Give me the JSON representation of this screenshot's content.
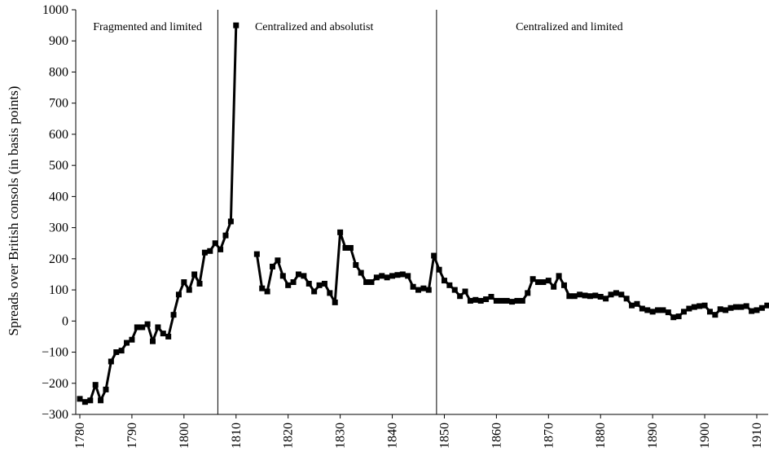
{
  "chart_data": {
    "type": "line",
    "title": "",
    "xlabel": "",
    "ylabel": "Spreads over British consols (in basis points)",
    "xlim": [
      1780,
      1913
    ],
    "ylim": [
      -300,
      1000
    ],
    "y_ticks": [
      -300,
      -200,
      -100,
      0,
      100,
      200,
      300,
      400,
      500,
      600,
      700,
      800,
      900,
      1000
    ],
    "x_ticks": [
      1780,
      1790,
      1800,
      1810,
      1820,
      1830,
      1840,
      1850,
      1860,
      1870,
      1880,
      1890,
      1900,
      1910
    ],
    "grid": false,
    "marker": "square",
    "regime_lines": [
      1806.5,
      1848.5
    ],
    "regime_labels": [
      {
        "text": "Fragmented and limited",
        "x": 1793
      },
      {
        "text": "Centralized and absolutist",
        "x": 1825
      },
      {
        "text": "Centralized and limited",
        "x": 1874
      }
    ],
    "series": [
      {
        "segments": [
          [
            [
              1780,
              -250
            ],
            [
              1781,
              -260
            ],
            [
              1782,
              -255
            ],
            [
              1783,
              -205
            ],
            [
              1784,
              -255
            ],
            [
              1785,
              -220
            ],
            [
              1786,
              -130
            ],
            [
              1787,
              -100
            ],
            [
              1788,
              -95
            ],
            [
              1789,
              -70
            ],
            [
              1790,
              -60
            ],
            [
              1791,
              -20
            ],
            [
              1792,
              -20
            ],
            [
              1793,
              -10
            ],
            [
              1794,
              -65
            ],
            [
              1795,
              -20
            ],
            [
              1796,
              -40
            ],
            [
              1797,
              -50
            ],
            [
              1798,
              20
            ],
            [
              1799,
              85
            ],
            [
              1800,
              125
            ],
            [
              1801,
              100
            ],
            [
              1802,
              150
            ],
            [
              1803,
              120
            ],
            [
              1804,
              220
            ],
            [
              1805,
              225
            ],
            [
              1806,
              250
            ],
            [
              1807,
              230
            ],
            [
              1808,
              275
            ],
            [
              1809,
              320
            ],
            [
              1810,
              950
            ]
          ],
          [
            [
              1814,
              215
            ],
            [
              1815,
              105
            ],
            [
              1816,
              95
            ],
            [
              1817,
              175
            ],
            [
              1818,
              195
            ],
            [
              1819,
              145
            ],
            [
              1820,
              115
            ],
            [
              1821,
              125
            ],
            [
              1822,
              150
            ],
            [
              1823,
              145
            ],
            [
              1824,
              120
            ],
            [
              1825,
              95
            ],
            [
              1826,
              115
            ],
            [
              1827,
              120
            ],
            [
              1828,
              90
            ],
            [
              1829,
              60
            ],
            [
              1830,
              285
            ],
            [
              1831,
              235
            ],
            [
              1832,
              235
            ],
            [
              1833,
              180
            ],
            [
              1834,
              155
            ],
            [
              1835,
              125
            ],
            [
              1836,
              125
            ],
            [
              1837,
              140
            ],
            [
              1838,
              145
            ],
            [
              1839,
              140
            ],
            [
              1840,
              145
            ],
            [
              1841,
              148
            ],
            [
              1842,
              150
            ],
            [
              1843,
              145
            ],
            [
              1844,
              110
            ],
            [
              1845,
              100
            ],
            [
              1846,
              105
            ],
            [
              1847,
              100
            ],
            [
              1848,
              210
            ],
            [
              1849,
              165
            ],
            [
              1850,
              130
            ],
            [
              1851,
              115
            ],
            [
              1852,
              100
            ],
            [
              1853,
              80
            ],
            [
              1854,
              95
            ],
            [
              1855,
              65
            ],
            [
              1856,
              68
            ],
            [
              1857,
              65
            ],
            [
              1858,
              70
            ],
            [
              1859,
              78
            ],
            [
              1860,
              65
            ],
            [
              1861,
              65
            ],
            [
              1862,
              65
            ],
            [
              1863,
              62
            ],
            [
              1864,
              65
            ],
            [
              1865,
              65
            ],
            [
              1866,
              90
            ],
            [
              1867,
              135
            ],
            [
              1868,
              125
            ],
            [
              1869,
              125
            ],
            [
              1870,
              130
            ],
            [
              1871,
              110
            ],
            [
              1872,
              145
            ],
            [
              1873,
              115
            ],
            [
              1874,
              80
            ],
            [
              1875,
              80
            ],
            [
              1876,
              85
            ],
            [
              1877,
              82
            ],
            [
              1878,
              80
            ],
            [
              1879,
              82
            ],
            [
              1880,
              78
            ],
            [
              1881,
              72
            ],
            [
              1882,
              85
            ],
            [
              1883,
              90
            ],
            [
              1884,
              85
            ],
            [
              1885,
              72
            ],
            [
              1886,
              50
            ],
            [
              1887,
              55
            ],
            [
              1888,
              40
            ],
            [
              1889,
              35
            ],
            [
              1890,
              30
            ],
            [
              1891,
              35
            ],
            [
              1892,
              35
            ],
            [
              1893,
              28
            ],
            [
              1894,
              12
            ],
            [
              1895,
              15
            ],
            [
              1896,
              30
            ],
            [
              1897,
              40
            ],
            [
              1898,
              45
            ],
            [
              1899,
              48
            ],
            [
              1900,
              50
            ],
            [
              1901,
              30
            ],
            [
              1902,
              20
            ],
            [
              1903,
              38
            ],
            [
              1904,
              35
            ],
            [
              1905,
              42
            ],
            [
              1906,
              45
            ],
            [
              1907,
              45
            ],
            [
              1908,
              48
            ],
            [
              1909,
              32
            ],
            [
              1910,
              35
            ],
            [
              1911,
              42
            ],
            [
              1912,
              50
            ],
            [
              1913,
              48
            ]
          ]
        ]
      }
    ]
  }
}
